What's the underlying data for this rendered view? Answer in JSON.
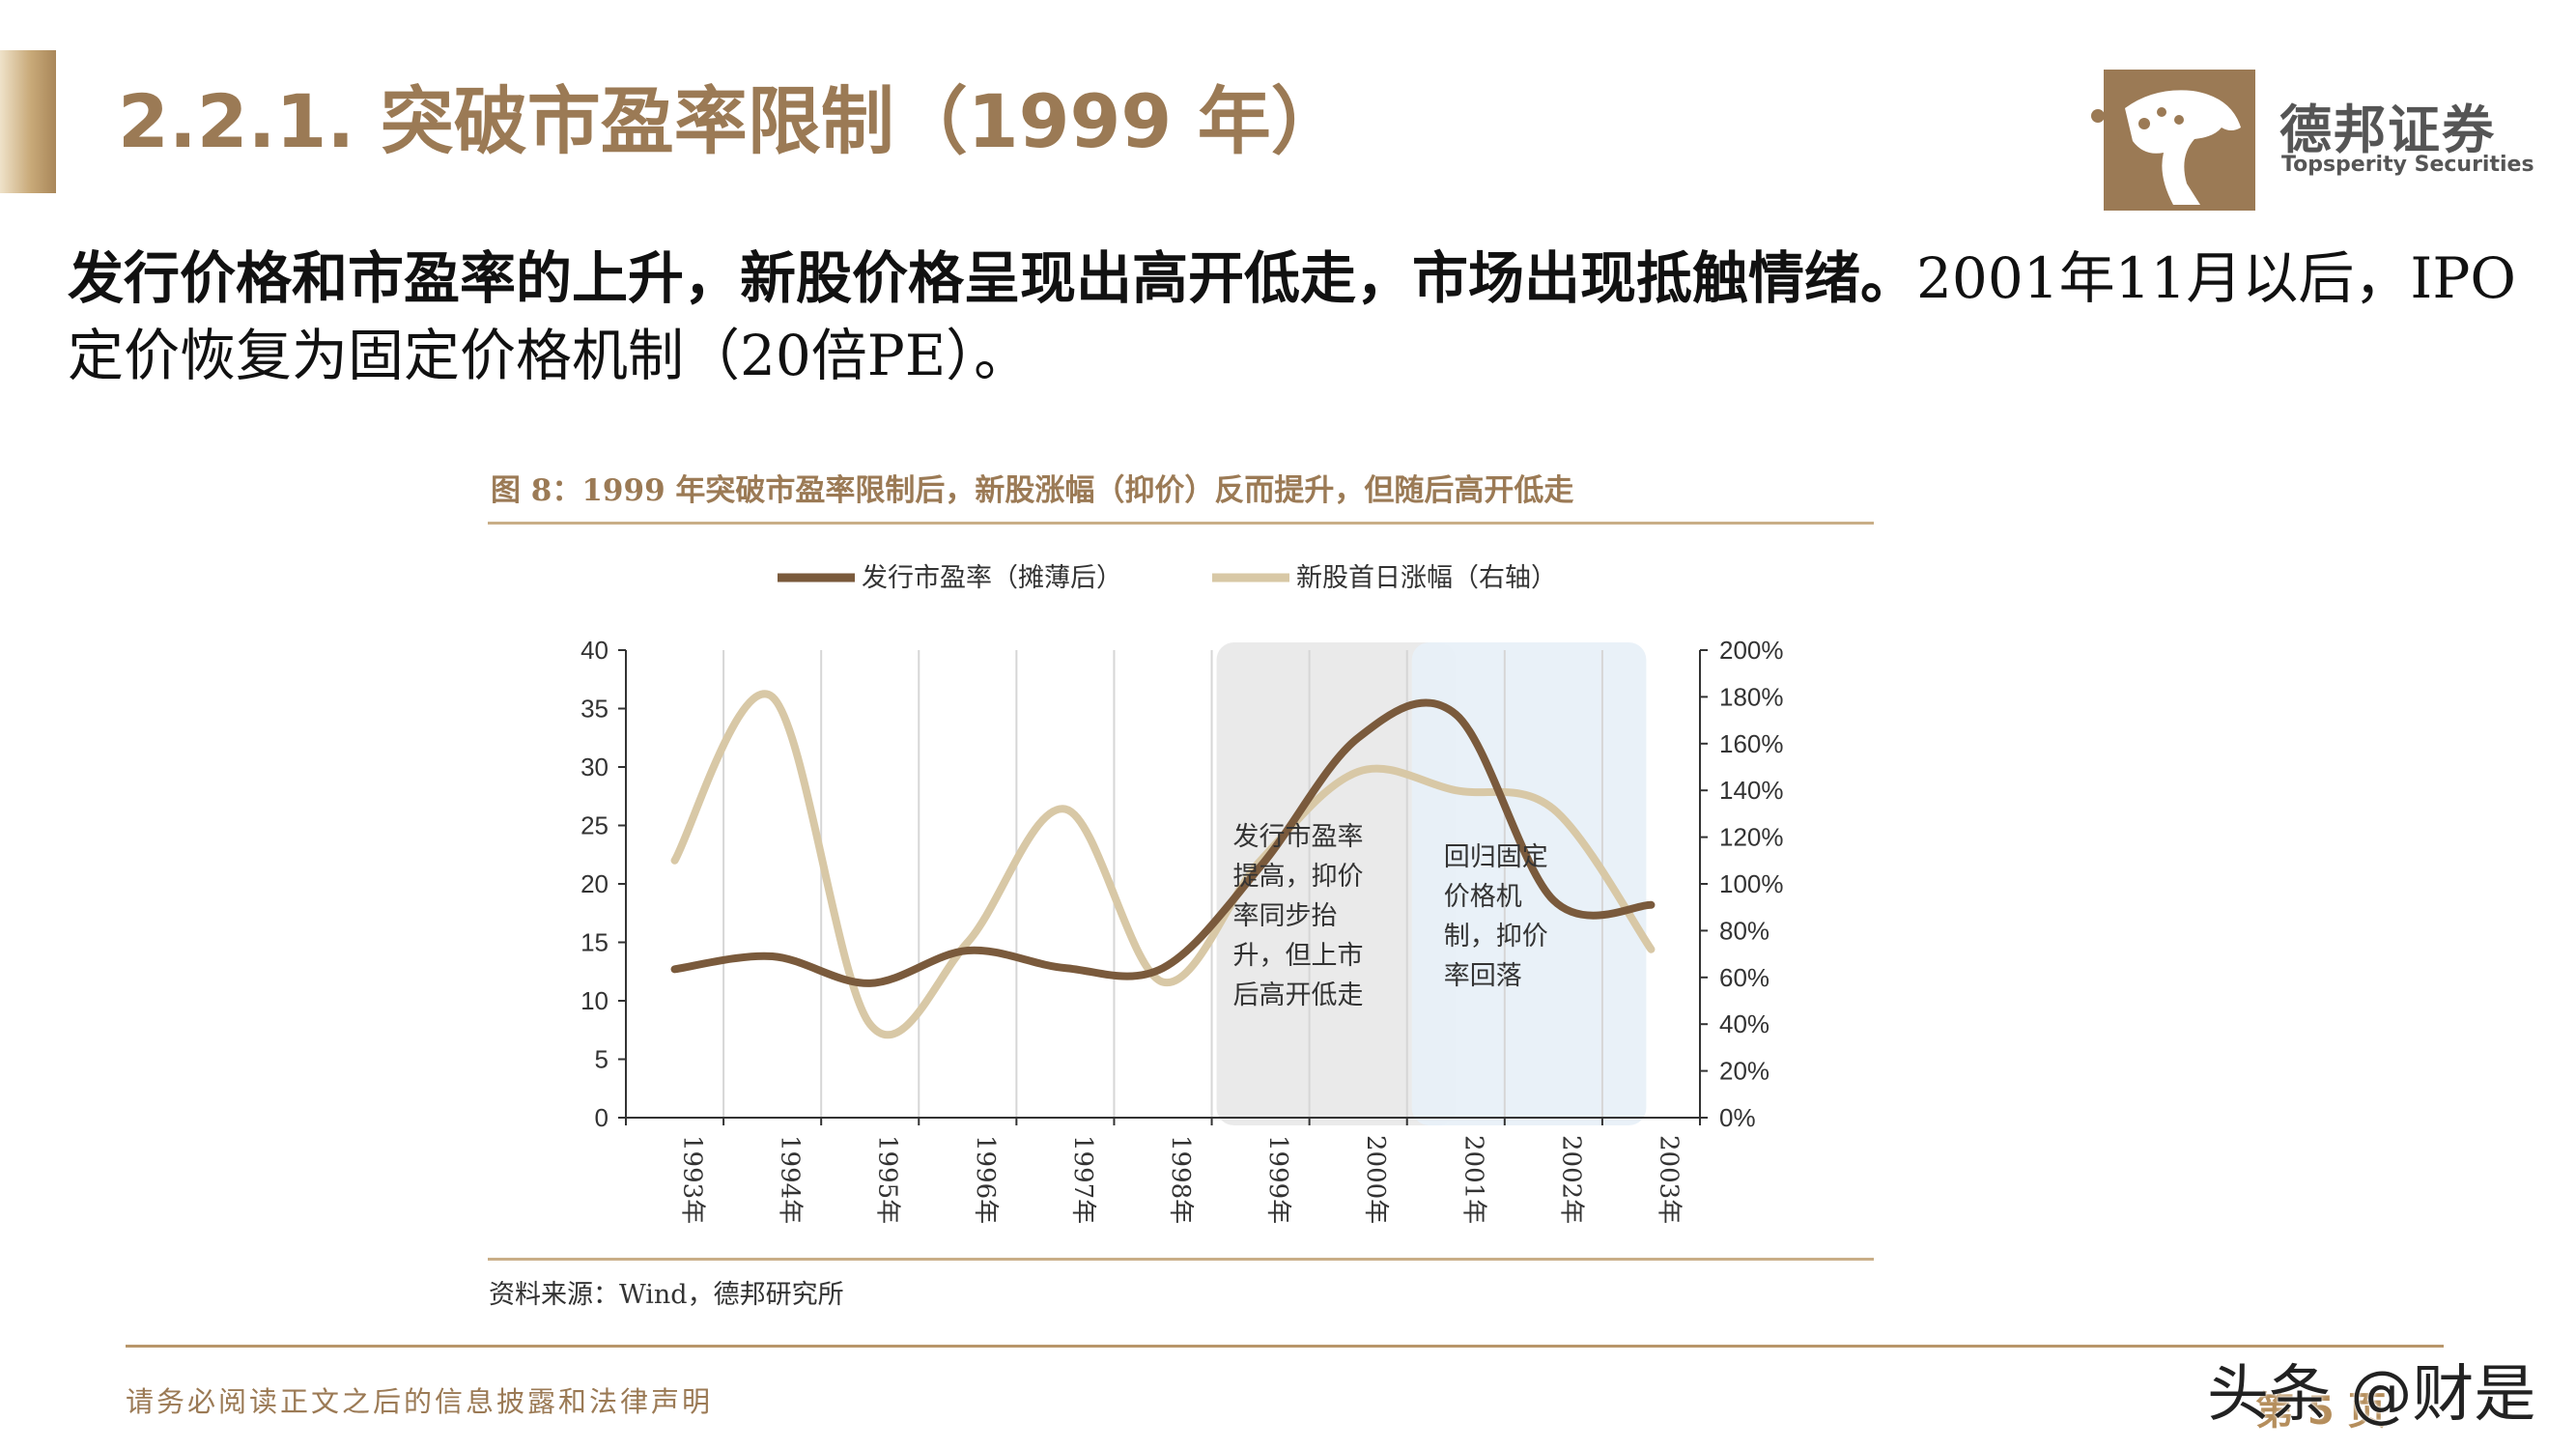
{
  "header": {
    "title": "2.2.1. 突破市盈率限制（1999 年）",
    "logo_name": "德邦证券",
    "logo_sub": "Topsperity Securities"
  },
  "body": {
    "bold_text": "发行价格和市盈率的上升，新股价格呈现出高开低走，市场出现抵触情绪。",
    "normal_text": "2001年11月以后，IPO定价恢复为固定价格机制（20倍PE）。"
  },
  "figure": {
    "caption": "图 8：1999 年突破市盈率限制后，新股涨幅（抑价）反而提升，但随后高开低走",
    "source": "资料来源：Wind，德邦研究所"
  },
  "chart_data": {
    "type": "line",
    "categories": [
      "1993年",
      "1994年",
      "1995年",
      "1996年",
      "1997年",
      "1998年",
      "1999年",
      "2000年",
      "2001年",
      "2002年",
      "2003年"
    ],
    "series": [
      {
        "name": "发行市盈率（摊薄后）",
        "axis": "left",
        "color": "#7a5a3c",
        "values": [
          12.7,
          13.8,
          11.5,
          14.3,
          12.8,
          12.8,
          21.5,
          32.5,
          34.5,
          18.6,
          18.2
        ]
      },
      {
        "name": "新股首日涨幅（右轴）",
        "axis": "right",
        "color": "#d8c8a6",
        "values": [
          110,
          180,
          40,
          75,
          132,
          58,
          110,
          148,
          140,
          132,
          72
        ]
      }
    ],
    "y_left": {
      "ylim": [
        0,
        40
      ],
      "ticks": [
        "0",
        "5",
        "10",
        "15",
        "20",
        "25",
        "30",
        "35",
        "40"
      ]
    },
    "y_right": {
      "ylim": [
        0,
        200
      ],
      "ticks": [
        "0%",
        "20%",
        "40%",
        "60%",
        "80%",
        "100%",
        "120%",
        "140%",
        "160%",
        "180%",
        "200%"
      ]
    },
    "grid": "vertical",
    "legend": "top",
    "annotations": [
      {
        "text_lines": [
          "发行市盈率",
          "提高，抑价",
          "率同步抬",
          "升，但上市",
          "后高开低走"
        ],
        "span_from_year": "1999年",
        "span_to_year": "2001年",
        "shade": "#e9e9e9"
      },
      {
        "text_lines": [
          "回归固定",
          "价格机",
          "制，抑价",
          "率回落"
        ],
        "span_from_year": "2001年",
        "span_to_year": "2003年",
        "shade": "#e8f0f8"
      }
    ]
  },
  "footer": {
    "disclaimer": "请务必阅读正文之后的信息披露和法律声明",
    "page": "第 5 页",
    "watermark": "头条 @财是"
  },
  "colors": {
    "brand_gold": "#9b7a55",
    "brand_brown": "#8a6540"
  }
}
